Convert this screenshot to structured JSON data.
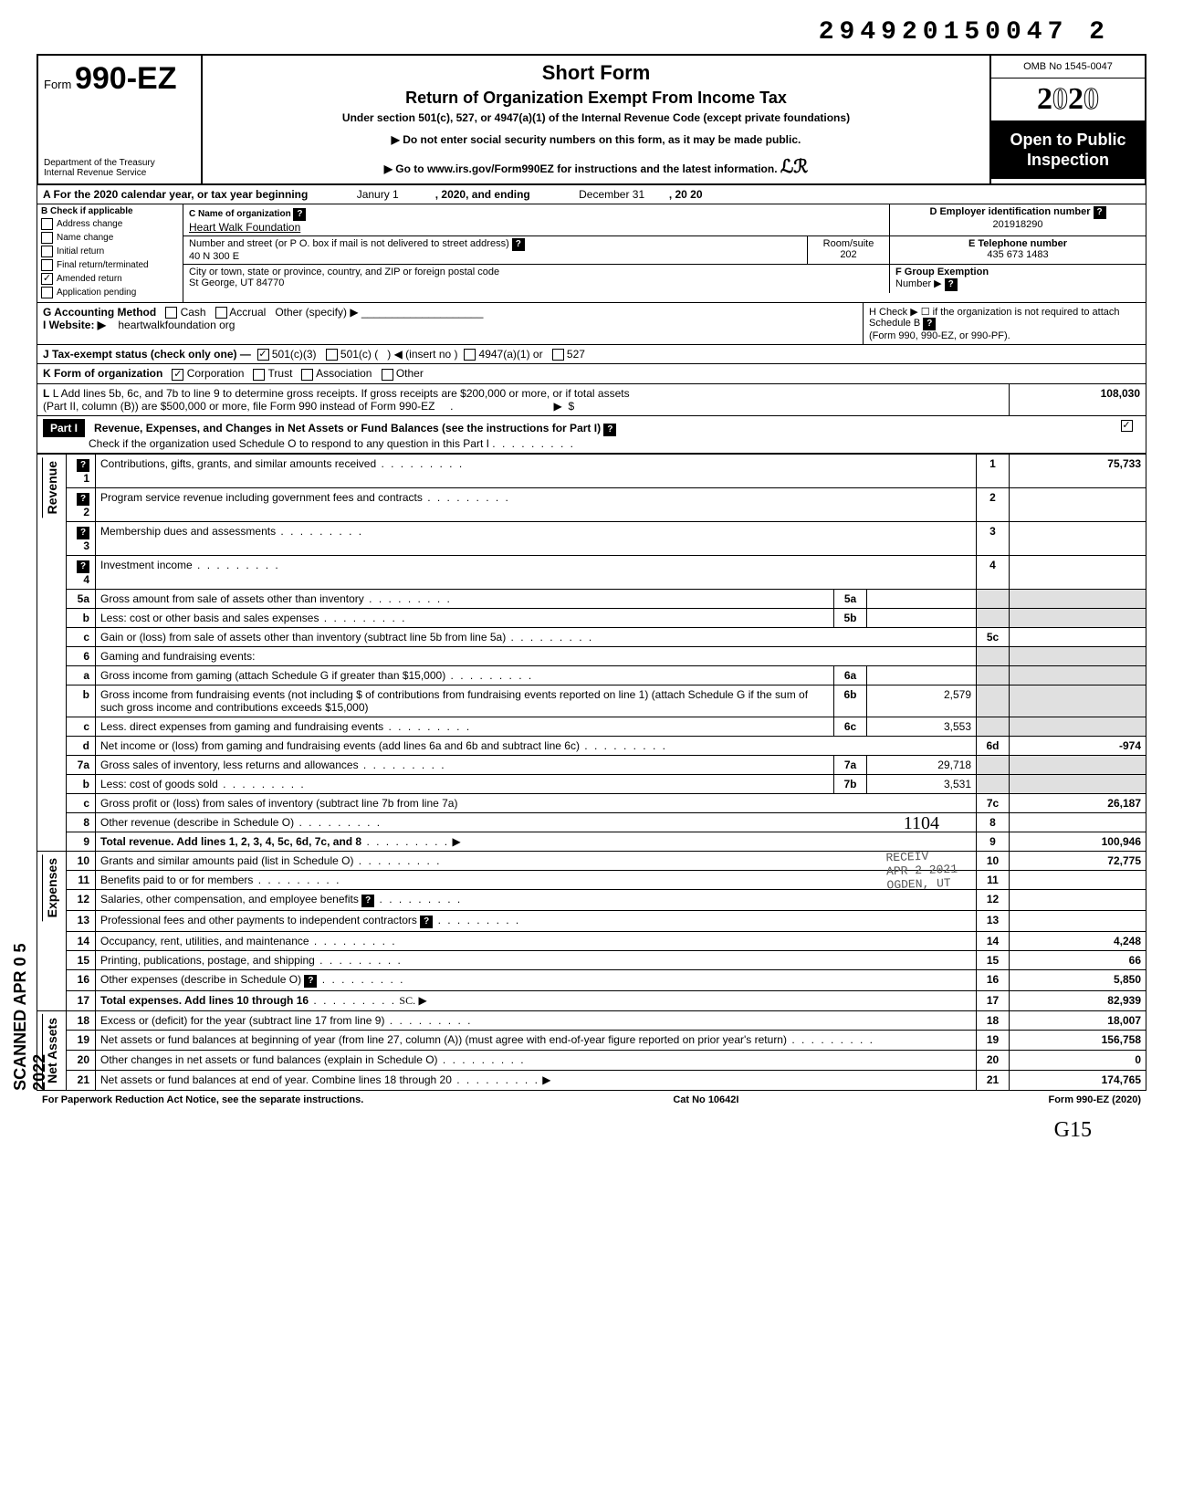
{
  "top_number": "294920150047 2",
  "header": {
    "form_label": "Form",
    "form_number": "990-EZ",
    "dept1": "Department of the Treasury",
    "dept2": "Internal Revenue Service",
    "title1": "Short Form",
    "title2": "Return of Organization Exempt From Income Tax",
    "subtitle": "Under section 501(c), 527, or 4947(a)(1) of the Internal Revenue Code (except private foundations)",
    "note1": "▶ Do not enter social security numbers on this form, as it may be made public.",
    "note2": "▶ Go to www.irs.gov/Form990EZ for instructions and the latest information.",
    "omb": "OMB No 1545-0047",
    "year": "2020",
    "open1": "Open to Public",
    "open2": "Inspection"
  },
  "rowA": {
    "label": "A For the 2020 calendar year, or tax year beginning",
    "begin": "Janury 1",
    "mid": ", 2020, and ending",
    "end_month": "December 31",
    "end_year": ", 20    20"
  },
  "colB": {
    "header": "B Check if applicable",
    "items": [
      {
        "label": "Address change",
        "checked": false
      },
      {
        "label": "Name change",
        "checked": false
      },
      {
        "label": "Initial return",
        "checked": false
      },
      {
        "label": "Final return/terminated",
        "checked": false
      },
      {
        "label": "Amended return",
        "checked": true
      },
      {
        "label": "Application pending",
        "checked": false
      }
    ]
  },
  "boxC": {
    "label": "C Name of organization",
    "value": "Heart Walk Foundation"
  },
  "boxD": {
    "label": "D Employer identification number",
    "value": "201918290"
  },
  "addr": {
    "label": "Number and street (or P O. box if mail is not delivered to street address)",
    "value": "40 N 300 E"
  },
  "room": {
    "label": "Room/suite",
    "value": "202"
  },
  "boxE": {
    "label": "E Telephone number",
    "value": "435 673 1483"
  },
  "city": {
    "label": "City or town, state or province, country, and ZIP or foreign postal code",
    "value": "St George, UT 84770"
  },
  "boxF": {
    "label": "F Group Exemption",
    "label2": "Number ▶"
  },
  "rowG": {
    "label": "G Accounting Method",
    "opt1": "Cash",
    "opt2": "Accrual",
    "opt3": "Other (specify) ▶"
  },
  "rowH": {
    "text": "H Check ▶ ☐ if the organization is not required to attach Schedule B",
    "text2": "(Form 990, 990-EZ, or 990-PF)."
  },
  "rowI": {
    "label": "I  Website: ▶",
    "value": "heartwalkfoundation org"
  },
  "rowJ": {
    "label": "J Tax-exempt status (check only one) —",
    "opt1": "501(c)(3)",
    "opt2": "501(c) (",
    "opt2b": ") ◀ (insert no )",
    "opt3": "4947(a)(1) or",
    "opt4": "527"
  },
  "rowK": {
    "label": "K Form of organization",
    "opt1": "Corporation",
    "opt2": "Trust",
    "opt3": "Association",
    "opt4": "Other"
  },
  "rowL": {
    "text1": "L Add lines 5b, 6c, and 7b to line 9 to determine gross receipts. If gross receipts are $200,000 or more, or if total assets",
    "text2": "(Part II, column (B)) are $500,000 or more, file Form 990 instead of Form 990-EZ",
    "arrow": "▶",
    "dollar": "$",
    "amount": "108,030"
  },
  "part1": {
    "label": "Part I",
    "title": "Revenue, Expenses, and Changes in Net Assets or Fund Balances (see the instructions for Part I)",
    "check_text": "Check if the organization used Schedule O to respond to any question in this Part I",
    "check_checked": true
  },
  "sections": {
    "revenue_label": "Revenue",
    "expenses_label": "Expenses",
    "netassets_label": "Net Assets"
  },
  "lines": {
    "l1": {
      "num": "1",
      "desc": "Contributions, gifts, grants, and similar amounts received",
      "r_num": "1",
      "r_amt": "75,733"
    },
    "l2": {
      "num": "2",
      "desc": "Program service revenue including government fees and contracts",
      "r_num": "2",
      "r_amt": ""
    },
    "l3": {
      "num": "3",
      "desc": "Membership dues and assessments",
      "r_num": "3",
      "r_amt": ""
    },
    "l4": {
      "num": "4",
      "desc": "Investment income",
      "r_num": "4",
      "r_amt": ""
    },
    "l5a": {
      "num": "5a",
      "desc": "Gross amount from sale of assets other than inventory",
      "m_num": "5a",
      "m_amt": ""
    },
    "l5b": {
      "num": "b",
      "desc": "Less: cost or other basis and sales expenses",
      "m_num": "5b",
      "m_amt": ""
    },
    "l5c": {
      "num": "c",
      "desc": "Gain or (loss) from sale of assets other than inventory (subtract line 5b from line 5a)",
      "r_num": "5c",
      "r_amt": ""
    },
    "l6": {
      "num": "6",
      "desc": "Gaming and fundraising events:"
    },
    "l6a": {
      "num": "a",
      "desc": "Gross income from gaming (attach Schedule G if greater than $15,000)",
      "m_num": "6a",
      "m_amt": ""
    },
    "l6b": {
      "num": "b",
      "desc": "Gross income from fundraising events (not including  $                     of contributions from fundraising events reported on line 1) (attach Schedule G if the sum of such gross income and contributions exceeds $15,000)",
      "m_num": "6b",
      "m_amt": "2,579"
    },
    "l6c": {
      "num": "c",
      "desc": "Less. direct expenses from gaming and fundraising events",
      "m_num": "6c",
      "m_amt": "3,553"
    },
    "l6d": {
      "num": "d",
      "desc": "Net income or (loss) from gaming and fundraising events (add lines 6a and 6b and subtract line 6c)",
      "r_num": "6d",
      "r_amt": "-974"
    },
    "l7a": {
      "num": "7a",
      "desc": "Gross sales of inventory, less returns and allowances",
      "m_num": "7a",
      "m_amt": "29,718"
    },
    "l7b": {
      "num": "b",
      "desc": "Less: cost of goods sold",
      "m_num": "7b",
      "m_amt": "3,531"
    },
    "l7c": {
      "num": "c",
      "desc": "Gross profit or (loss) from sales of inventory (subtract line 7b from line 7a)",
      "r_num": "7c",
      "r_amt": "26,187"
    },
    "l8": {
      "num": "8",
      "desc": "Other revenue (describe in Schedule O)",
      "r_num": "8",
      "r_amt": "",
      "scribble": "1104"
    },
    "l9": {
      "num": "9",
      "desc": "Total revenue. Add lines 1, 2, 3, 4, 5c, 6d, 7c, and 8",
      "r_num": "9",
      "r_amt": "100,946",
      "bold": true
    },
    "l10": {
      "num": "10",
      "desc": "Grants and similar amounts paid (list in Schedule O)",
      "r_num": "10",
      "r_amt": "72,775"
    },
    "l11": {
      "num": "11",
      "desc": "Benefits paid to or for members",
      "r_num": "11",
      "r_amt": ""
    },
    "l12": {
      "num": "12",
      "desc": "Salaries, other compensation, and employee benefits",
      "r_num": "12",
      "r_amt": ""
    },
    "l13": {
      "num": "13",
      "desc": "Professional fees and other payments to independent contractors",
      "r_num": "13",
      "r_amt": ""
    },
    "l14": {
      "num": "14",
      "desc": "Occupancy, rent, utilities, and maintenance",
      "r_num": "14",
      "r_amt": "4,248"
    },
    "l15": {
      "num": "15",
      "desc": "Printing, publications, postage, and shipping",
      "r_num": "15",
      "r_amt": "66"
    },
    "l16": {
      "num": "16",
      "desc": "Other expenses (describe in Schedule O)",
      "r_num": "16",
      "r_amt": "5,850"
    },
    "l17": {
      "num": "17",
      "desc": "Total expenses. Add lines 10 through 16",
      "r_num": "17",
      "r_amt": "82,939",
      "bold": true
    },
    "l18": {
      "num": "18",
      "desc": "Excess or (deficit) for the year (subtract line 17 from line 9)",
      "r_num": "18",
      "r_amt": "18,007"
    },
    "l19": {
      "num": "19",
      "desc": "Net assets or fund balances at beginning of year (from line 27, column (A)) (must agree with end-of-year figure reported on prior year's return)",
      "r_num": "19",
      "r_amt": "156,758"
    },
    "l20": {
      "num": "20",
      "desc": "Other changes in net assets or fund balances (explain in Schedule O)",
      "r_num": "20",
      "r_amt": "0"
    },
    "l21": {
      "num": "21",
      "desc": "Net assets or fund balances at end of year. Combine lines 18 through 20",
      "r_num": "21",
      "r_amt": "174,765"
    }
  },
  "footer": {
    "left": "For Paperwork Reduction Act Notice, see the separate instructions.",
    "mid": "Cat No 10642I",
    "right": "Form 990-EZ (2020)"
  },
  "side_stamp": "SCANNED APR 0 5 2022",
  "received_stamp": {
    "l1": "RECEIV",
    "l2": "APR 2 2021",
    "l3": "OGDEN, UT"
  },
  "sc_mark": "SC.",
  "bottom_mark": "G15"
}
